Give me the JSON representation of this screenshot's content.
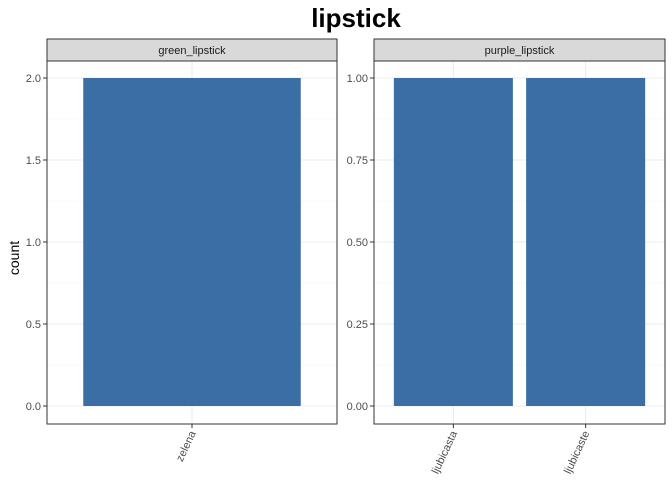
{
  "chart_data": {
    "type": "bar",
    "title": "lipstick",
    "ylabel": "count",
    "xlabel": "",
    "grid": true,
    "colors": {
      "bar": "#3a6ea5",
      "strip": "#d9d9d9",
      "grid_major": "#ebebeb",
      "grid_minor": "#f5f5f5",
      "border": "#333333"
    },
    "panels": [
      {
        "strip": "green_lipstick",
        "categories": [
          "zelena"
        ],
        "values": [
          2
        ],
        "ylim": [
          0,
          2.0
        ],
        "yticks": [
          0.0,
          0.5,
          1.0,
          1.5,
          2.0
        ],
        "ytick_labels": [
          "0.0",
          "0.5",
          "1.0",
          "1.5",
          "2.0"
        ]
      },
      {
        "strip": "purple_lipstick",
        "categories": [
          "ljubicasta",
          "ljubicaste"
        ],
        "values": [
          1,
          1
        ],
        "ylim": [
          0,
          1.0
        ],
        "yticks": [
          0.0,
          0.25,
          0.5,
          0.75,
          1.0
        ],
        "ytick_labels": [
          "0.00",
          "0.25",
          "0.50",
          "0.75",
          "1.00"
        ]
      }
    ]
  }
}
